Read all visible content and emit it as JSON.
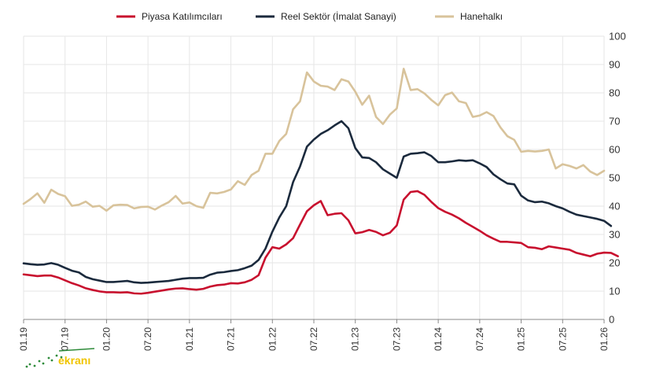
{
  "colors": {
    "piyasa": "#c8102e",
    "reel": "#1b2a3d",
    "hanehalki": "#d8c39b",
    "grid": "#e6e6e6",
    "axis": "#888888"
  },
  "watermark_text": "ekranı",
  "chart_data": {
    "type": "line",
    "title": "",
    "xlabel": "",
    "ylabel": "",
    "ylim": [
      0,
      100
    ],
    "yticks": [
      "0",
      "10",
      "20",
      "30",
      "40",
      "50",
      "60",
      "70",
      "80",
      "90",
      "100"
    ],
    "x_start": "01.19",
    "xticks": [
      "01.19",
      "07.19",
      "01.20",
      "07.20",
      "01.21",
      "07.21",
      "01.22",
      "07.22",
      "01.23",
      "07.23",
      "01.24",
      "07.24",
      "01.25",
      "07.25",
      "01.26"
    ],
    "legend_position": "top",
    "series": [
      {
        "name": "Piyasa Katılımcıları",
        "color_key": "piyasa",
        "values": [
          15.9,
          15.6,
          15.3,
          15.5,
          15.5,
          14.8,
          13.8,
          12.8,
          12.0,
          11.0,
          10.4,
          9.9,
          9.6,
          9.6,
          9.5,
          9.6,
          9.2,
          9.1,
          9.4,
          9.8,
          10.2,
          10.6,
          10.9,
          11.0,
          10.7,
          10.5,
          10.8,
          11.6,
          12.1,
          12.3,
          12.8,
          12.7,
          13.1,
          14.0,
          15.6,
          21.8,
          25.5,
          25.0,
          26.5,
          28.7,
          33.5,
          38.2,
          40.3,
          41.8,
          36.8,
          37.3,
          37.5,
          35.0,
          30.4,
          30.8,
          31.6,
          30.9,
          29.7,
          30.6,
          33.2,
          42.3,
          45.0,
          45.3,
          44.0,
          41.5,
          39.3,
          38.0,
          37.0,
          35.7,
          34.1,
          32.7,
          31.3,
          29.7,
          28.5,
          27.4,
          27.4,
          27.2,
          27.0,
          25.5,
          25.3,
          24.8,
          25.8,
          25.4,
          25.0,
          24.6,
          23.5,
          22.9,
          22.3,
          23.2,
          23.6,
          23.5,
          22.3
        ]
      },
      {
        "name": "Reel Sektör (İmalat Sanayi)",
        "color_key": "reel",
        "values": [
          19.8,
          19.5,
          19.3,
          19.4,
          19.9,
          19.3,
          18.2,
          17.2,
          16.6,
          15.0,
          14.2,
          13.7,
          13.2,
          13.2,
          13.4,
          13.6,
          13.1,
          12.9,
          13.0,
          13.2,
          13.4,
          13.6,
          14.0,
          14.4,
          14.6,
          14.6,
          14.7,
          15.8,
          16.5,
          16.7,
          17.1,
          17.4,
          18.1,
          19.0,
          21.0,
          25.0,
          31.0,
          36.0,
          40.0,
          48.5,
          54.0,
          61.0,
          63.5,
          65.5,
          66.8,
          68.5,
          70.0,
          67.5,
          60.5,
          57.2,
          57.0,
          55.5,
          53.0,
          51.5,
          50.0,
          57.5,
          58.5,
          58.7,
          59.0,
          57.7,
          55.5,
          55.5,
          55.8,
          56.2,
          56.0,
          56.2,
          55.1,
          53.8,
          51.2,
          49.5,
          48.0,
          47.7,
          43.7,
          42.0,
          41.4,
          41.6,
          41.0,
          40.0,
          39.2,
          38.0,
          37.0,
          36.5,
          36.0,
          35.5,
          34.8,
          33.0
        ]
      },
      {
        "name": "Hanehalkı",
        "color_key": "hanehalki",
        "values": [
          40.8,
          42.5,
          44.5,
          41.2,
          45.8,
          44.3,
          43.5,
          40.1,
          40.5,
          41.6,
          39.8,
          40.1,
          38.4,
          40.3,
          40.5,
          40.4,
          39.2,
          39.7,
          39.8,
          38.8,
          40.2,
          41.4,
          43.6,
          40.9,
          41.3,
          40.0,
          39.4,
          44.7,
          44.5,
          45.0,
          45.9,
          48.8,
          47.5,
          51.0,
          52.5,
          58.5,
          58.5,
          63.0,
          65.5,
          74.2,
          77.0,
          87.2,
          84.0,
          82.5,
          82.2,
          81.0,
          84.8,
          84.0,
          80.4,
          75.8,
          79.0,
          71.5,
          69.0,
          72.3,
          74.5,
          88.5,
          81.0,
          81.3,
          79.8,
          77.5,
          75.6,
          79.2,
          80.1,
          77.0,
          76.4,
          71.5,
          72.0,
          73.2,
          71.8,
          67.8,
          64.7,
          63.4,
          59.2,
          59.5,
          59.3,
          59.5,
          60.0,
          53.3,
          54.8,
          54.2,
          53.3,
          54.5,
          52.2,
          51.0,
          52.5
        ]
      }
    ]
  }
}
